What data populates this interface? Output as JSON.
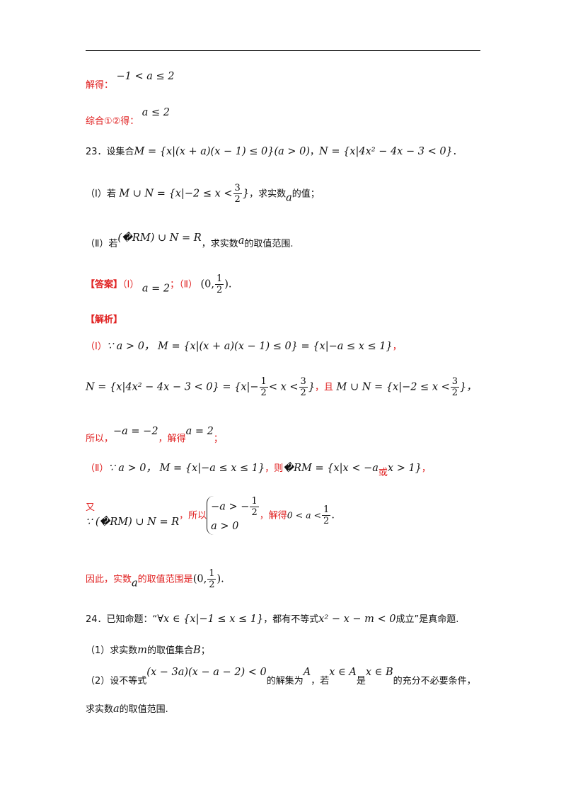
{
  "line1": {
    "label": "解得：",
    "math": "−1 < a ≤ 2"
  },
  "line2": {
    "label": "综合①②得：",
    "math": "a ≤ 2"
  },
  "q23": {
    "stem_pre": "23．设集合",
    "set_M": "M = {x|(x + a)(x − 1) ≤ 0}(a > 0)",
    "sep": "，",
    "set_N": "N = {x|4x² − 4x − 3 < 0}",
    "end": "．",
    "p1_pre": "（Ⅰ）若",
    "p1_math_pre": "M ∪ N = {x|−2 ≤ x <",
    "p1_num": "3",
    "p1_den": "2",
    "p1_close": "}",
    "p1_post": "，求实数",
    "p1_var": "a",
    "p1_end": "的值；",
    "p2_pre": "（Ⅱ）若",
    "p2_math": "(�RM) ∪ N = R",
    "p2_post": "，求实数",
    "p2_var": "a",
    "p2_end": "的取值范围."
  },
  "answer": {
    "tag": "【答案】",
    "p1": "（Ⅰ）",
    "p1_val": "a = 2",
    "sep": "；",
    "p2": "（Ⅱ）",
    "p2_open": "(0,",
    "p2_num": "1",
    "p2_den": "2",
    "p2_close": ")",
    "end": "."
  },
  "analysis": {
    "tag": "【解析】",
    "l1_pre": "（Ⅰ）",
    "l1_math": "∵ a > 0，  M = {x|(x + a)(x − 1) ≤ 0} = {x|−a ≤ x ≤ 1}",
    "l1_end": "，",
    "l2_a": "N = {x|4x² − 4x − 3 < 0} = {x|−",
    "l2_num1": "1",
    "l2_den1": "2",
    "l2_b": "< x <",
    "l2_num2": "3",
    "l2_den2": "2",
    "l2_c": "}",
    "l2_and": "，且",
    "l2_d": "M ∪ N = {x|−2 ≤ x <",
    "l2_num3": "3",
    "l2_den3": "2",
    "l2_e": "}，",
    "l3_pre": "所以，",
    "l3_math": "−a = −2",
    "l3_mid": "，解得",
    "l3_val": "a = 2",
    "l3_end": "；",
    "l4_pre": "（Ⅱ）",
    "l4_math": "∵ a > 0，  M = {x|−a ≤ x ≤ 1}",
    "l4_then": "，则",
    "l4_math2": "�RM = {x|x < −a",
    "l4_or": "或",
    "l4_math3": "x > 1}",
    "l4_end": "，",
    "l5_also": "又",
    "l5_math": "∵ (�RM) ∪ N = R",
    "l5_so": "，所以",
    "l5_sys1": "−a > −",
    "l5_sys1_num": "1",
    "l5_sys1_den": "2",
    "l5_sys2": "a > 0",
    "l5_solve": "，解得",
    "l5_res": "0 < a <",
    "l5_res_num": "1",
    "l5_res_den": "2",
    "l5_end": ".",
    "l6_pre": "因此，实数",
    "l6_var": "a",
    "l6_mid": "的取值范围是",
    "l6_open": "(0,",
    "l6_num": "1",
    "l6_den": "2",
    "l6_close": ")",
    "l6_end": "."
  },
  "q24": {
    "stem_pre": "24．已知命题：“",
    "stem_math": "∀x ∈ {x|−1 ≤ x ≤ 1}",
    "stem_mid": "，都有不等式",
    "stem_math2": "x² − x − m < 0",
    "stem_end": "成立”是真命题.",
    "p1_pre": "（1）求实数",
    "p1_var": "m",
    "p1_mid": "的取值集合",
    "p1_set": "B",
    "p1_end": "；",
    "p2_pre": "（2）设不等式",
    "p2_math": "(x − 3a)(x − a − 2) < 0",
    "p2_mid": "的解集为",
    "p2_A": "A",
    "p2_if": "，若",
    "p2_c1": "x ∈ A",
    "p2_is": "是",
    "p2_c2": "x ∈ B",
    "p2_end": "的充分不必要条件，",
    "p3": "求实数",
    "p3_var": "a",
    "p3_end": "的取值范围."
  }
}
